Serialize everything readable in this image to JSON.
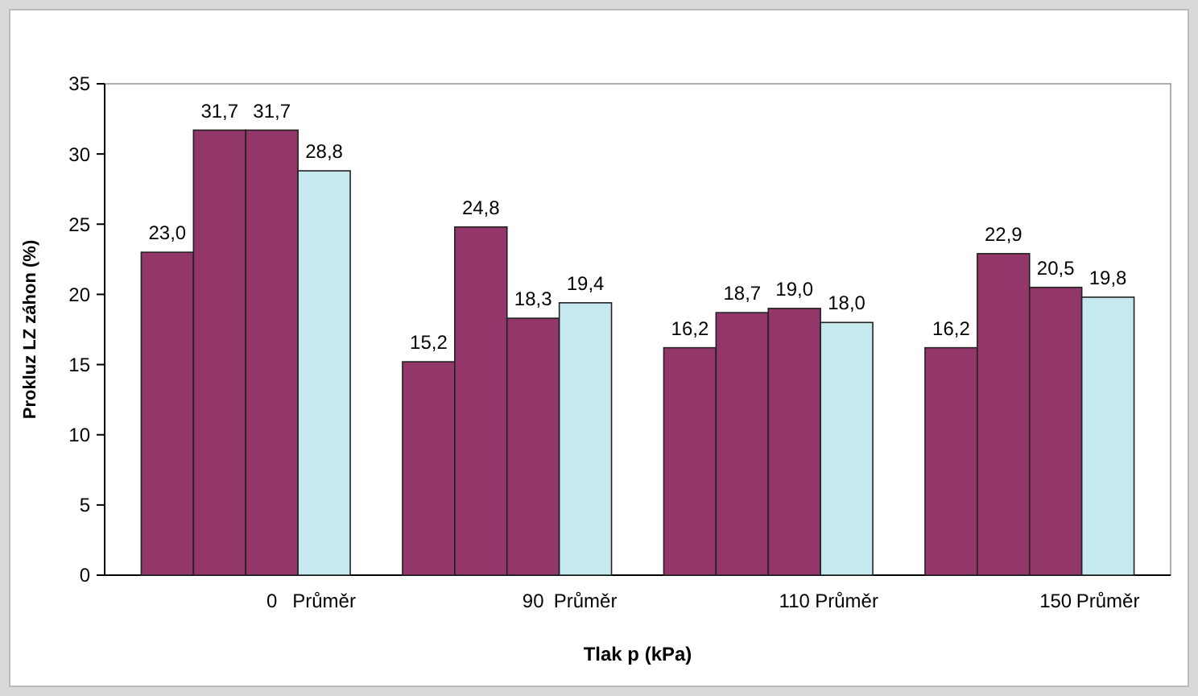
{
  "chart_data": {
    "type": "bar",
    "xlabel": "Tlak p (kPa)",
    "ylabel": "Prokluz LZ záhon (%)",
    "categories": [
      null,
      null,
      "0",
      "Průměr",
      null,
      null,
      null,
      "90",
      "Průměr",
      null,
      null,
      null,
      "110",
      "Průměr",
      null,
      null,
      null,
      "150",
      "Průměr"
    ],
    "values": [
      23.0,
      31.7,
      31.7,
      28.8,
      null,
      15.2,
      24.8,
      18.3,
      19.4,
      null,
      16.2,
      18.7,
      19.0,
      18.0,
      null,
      16.2,
      22.9,
      20.5,
      19.8
    ],
    "value_labels": [
      "23,0",
      "31,7",
      "31,7",
      "28,8",
      null,
      "15,2",
      "24,8",
      "18,3",
      "19,4",
      null,
      "16,2",
      "18,7",
      "19,0",
      "18,0",
      null,
      "16,2",
      "22,9",
      "20,5",
      "19,8"
    ],
    "colors": [
      "#93366a",
      "#93366a",
      "#93366a",
      "#c6e9ef",
      null,
      "#93366a",
      "#93366a",
      "#93366a",
      "#c6e9ef",
      null,
      "#93366a",
      "#93366a",
      "#93366a",
      "#c6e9ef",
      null,
      "#93366a",
      "#93366a",
      "#93366a",
      "#c6e9ef"
    ],
    "ylim": [
      0,
      35
    ],
    "yticks": [
      0,
      5,
      10,
      15,
      20,
      25,
      30,
      35
    ],
    "grid": false
  }
}
